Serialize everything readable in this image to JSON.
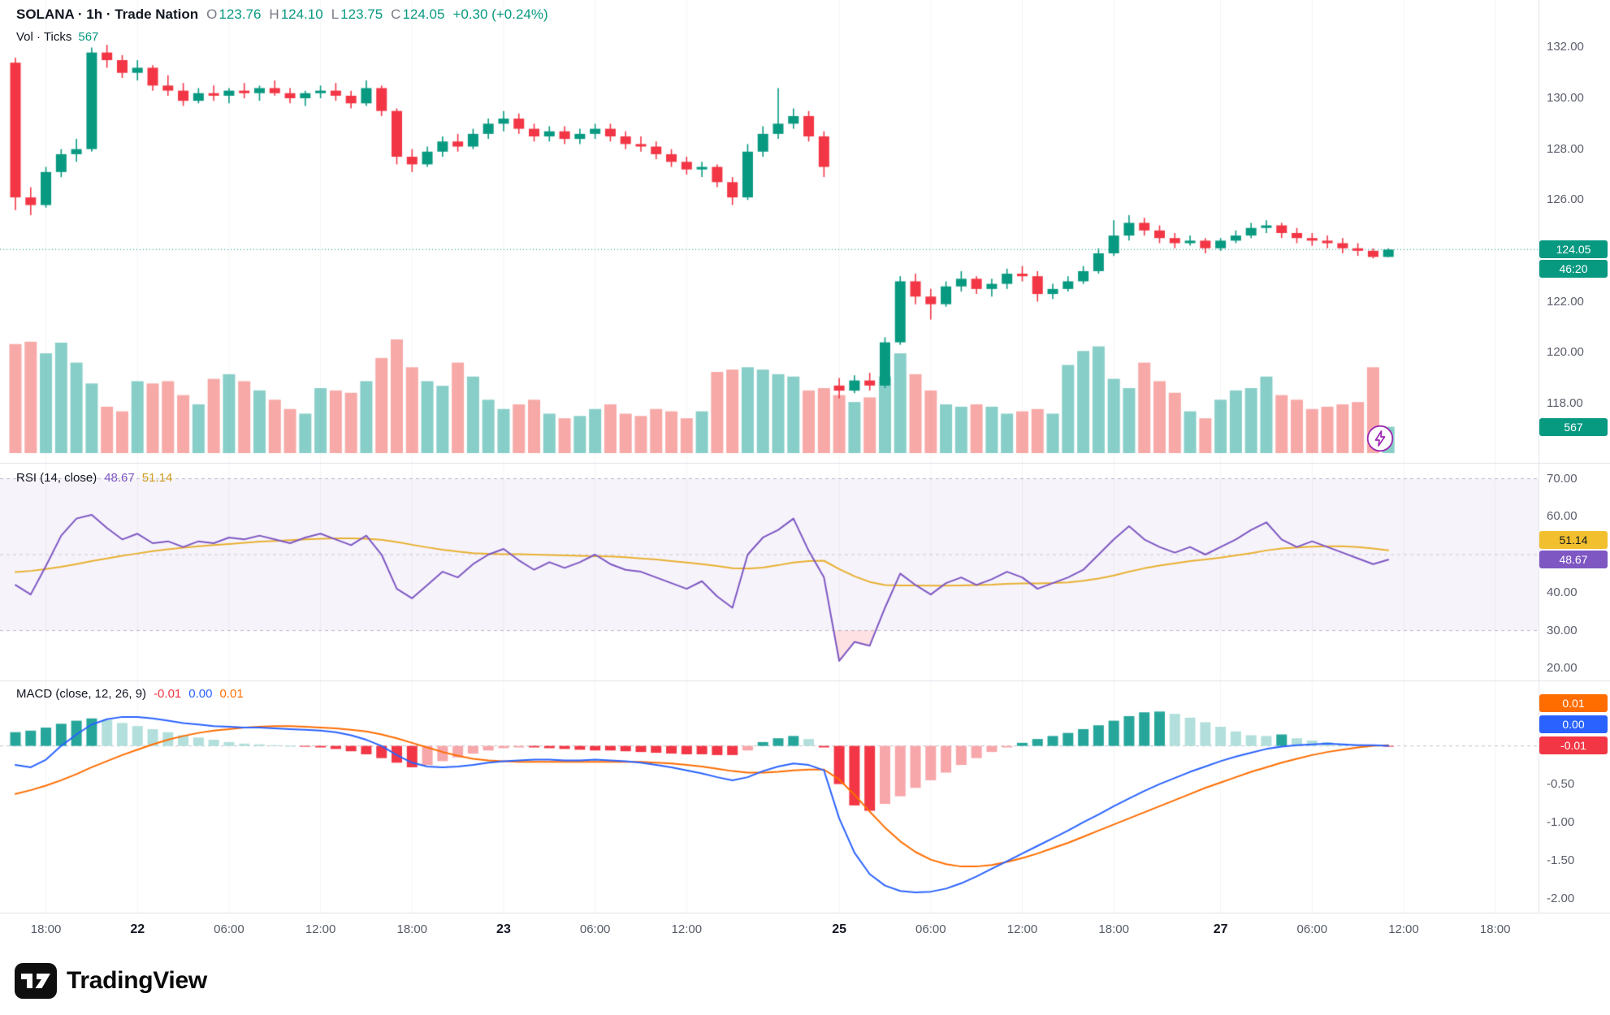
{
  "header": {
    "title": "SOLANA · 1h · Trade Nation",
    "ohlc": {
      "o_label": "O",
      "o_value": "123.76",
      "h_label": "H",
      "h_value": "124.10",
      "l_label": "L",
      "l_value": "123.75",
      "c_label": "C",
      "c_value": "124.05"
    },
    "change": "+0.30 (+0.24%)",
    "vol_label": "Vol · Ticks",
    "vol_value": "567"
  },
  "rsi": {
    "title": "RSI (14, close)",
    "value": "48.67",
    "ma_value": "51.14"
  },
  "macd": {
    "title": "MACD (close, 12, 26, 9)",
    "hist": "-0.01",
    "line": "0.00",
    "signal": "0.01"
  },
  "badges": {
    "price": "124.05",
    "countdown": "46:20",
    "volume": "567",
    "rsi_ma": "51.14",
    "rsi": "48.67",
    "macd_signal": "0.01",
    "macd_line": "0.00",
    "macd_hist": "-0.01"
  },
  "footer": {
    "brand": "TradingView"
  },
  "colors": {
    "up": "#089981",
    "down": "#f23645",
    "vol_up": "rgba(38,166,154,0.55)",
    "vol_down": "rgba(239,83,80,0.5)",
    "rsi": "#7e57c2",
    "rsi_ma": "#e8b030",
    "band": "rgba(126,87,194,0.07)",
    "rsi_oversold_fill": "rgba(242,54,69,0.15)",
    "macd": "#2962ff",
    "signal": "#ff6d00",
    "hist_up": "#26a69a",
    "hist_up_fade": "#b2dfdb",
    "hist_down": "#f23645",
    "hist_down_fade": "#f7a6aa",
    "grid": "rgba(42,46,57,0.05)",
    "separator": "#e0e3eb",
    "level_dash": "rgba(120,123,134,0.5)"
  },
  "chart_data": {
    "type": "candlestick",
    "symbol": "SOLANA",
    "interval": "1h",
    "last_price": 124.05,
    "price_axis_range": [
      117.5,
      132.6
    ],
    "candles": [
      [
        131.4,
        131.6,
        125.6,
        126.1
      ],
      [
        126.1,
        126.5,
        125.4,
        125.8
      ],
      [
        125.8,
        127.3,
        125.7,
        127.1
      ],
      [
        127.1,
        128.0,
        126.9,
        127.8
      ],
      [
        127.8,
        128.4,
        127.5,
        128.0
      ],
      [
        128.0,
        132.0,
        127.9,
        131.8
      ],
      [
        131.8,
        132.1,
        131.2,
        131.5
      ],
      [
        131.5,
        131.7,
        130.8,
        131.0
      ],
      [
        131.0,
        131.5,
        130.7,
        131.2
      ],
      [
        131.2,
        131.3,
        130.3,
        130.5
      ],
      [
        130.5,
        130.9,
        130.1,
        130.3
      ],
      [
        130.3,
        130.6,
        129.7,
        129.9
      ],
      [
        129.9,
        130.4,
        129.8,
        130.2
      ],
      [
        130.2,
        130.5,
        129.9,
        130.1
      ],
      [
        130.1,
        130.4,
        129.8,
        130.3
      ],
      [
        130.3,
        130.6,
        130.0,
        130.2
      ],
      [
        130.2,
        130.5,
        129.9,
        130.4
      ],
      [
        130.4,
        130.7,
        130.1,
        130.2
      ],
      [
        130.2,
        130.4,
        129.8,
        130.0
      ],
      [
        130.0,
        130.3,
        129.7,
        130.2
      ],
      [
        130.2,
        130.5,
        130.0,
        130.3
      ],
      [
        130.3,
        130.6,
        129.9,
        130.1
      ],
      [
        130.1,
        130.3,
        129.6,
        129.8
      ],
      [
        129.8,
        130.7,
        129.7,
        130.4
      ],
      [
        130.4,
        130.5,
        129.3,
        129.5
      ],
      [
        129.5,
        129.6,
        127.4,
        127.7
      ],
      [
        127.7,
        128.0,
        127.1,
        127.4
      ],
      [
        127.4,
        128.1,
        127.3,
        127.9
      ],
      [
        127.9,
        128.5,
        127.7,
        128.3
      ],
      [
        128.3,
        128.6,
        127.9,
        128.1
      ],
      [
        128.1,
        128.8,
        128.0,
        128.6
      ],
      [
        128.6,
        129.2,
        128.4,
        129.0
      ],
      [
        129.0,
        129.5,
        128.7,
        129.2
      ],
      [
        129.2,
        129.4,
        128.6,
        128.8
      ],
      [
        128.8,
        129.0,
        128.3,
        128.5
      ],
      [
        128.5,
        128.9,
        128.3,
        128.7
      ],
      [
        128.7,
        128.9,
        128.2,
        128.4
      ],
      [
        128.4,
        128.8,
        128.2,
        128.6
      ],
      [
        128.6,
        129.0,
        128.4,
        128.8
      ],
      [
        128.8,
        129.0,
        128.3,
        128.5
      ],
      [
        128.5,
        128.7,
        128.0,
        128.2
      ],
      [
        128.2,
        128.5,
        127.9,
        128.1
      ],
      [
        128.1,
        128.3,
        127.6,
        127.8
      ],
      [
        127.8,
        128.0,
        127.3,
        127.5
      ],
      [
        127.5,
        127.7,
        127.0,
        127.2
      ],
      [
        127.2,
        127.5,
        126.9,
        127.3
      ],
      [
        127.3,
        127.4,
        126.5,
        126.7
      ],
      [
        126.7,
        126.9,
        125.8,
        126.1
      ],
      [
        126.1,
        128.2,
        126.0,
        127.9
      ],
      [
        127.9,
        128.9,
        127.7,
        128.6
      ],
      [
        128.6,
        130.4,
        128.4,
        129.0
      ],
      [
        129.0,
        129.6,
        128.8,
        129.3
      ],
      [
        129.3,
        129.5,
        128.3,
        128.5
      ],
      [
        128.5,
        128.7,
        126.9,
        127.3
      ],
      [
        118.7,
        119.0,
        118.2,
        118.5
      ],
      [
        118.5,
        119.1,
        118.4,
        118.9
      ],
      [
        118.9,
        119.2,
        118.5,
        118.7
      ],
      [
        118.7,
        120.6,
        118.6,
        120.4
      ],
      [
        120.4,
        123.0,
        120.3,
        122.8
      ],
      [
        122.8,
        123.1,
        121.9,
        122.2
      ],
      [
        122.2,
        122.5,
        121.3,
        121.9
      ],
      [
        121.9,
        122.8,
        121.8,
        122.6
      ],
      [
        122.6,
        123.2,
        122.4,
        122.9
      ],
      [
        122.9,
        123.0,
        122.3,
        122.5
      ],
      [
        122.5,
        122.9,
        122.2,
        122.7
      ],
      [
        122.7,
        123.3,
        122.5,
        123.1
      ],
      [
        123.1,
        123.4,
        122.8,
        123.0
      ],
      [
        123.0,
        123.2,
        122.0,
        122.3
      ],
      [
        122.3,
        122.7,
        122.1,
        122.5
      ],
      [
        122.5,
        123.0,
        122.4,
        122.8
      ],
      [
        122.8,
        123.4,
        122.7,
        123.2
      ],
      [
        123.2,
        124.1,
        123.1,
        123.9
      ],
      [
        123.9,
        125.2,
        123.8,
        124.6
      ],
      [
        124.6,
        125.4,
        124.4,
        125.1
      ],
      [
        125.1,
        125.3,
        124.6,
        124.8
      ],
      [
        124.8,
        125.0,
        124.3,
        124.5
      ],
      [
        124.5,
        124.7,
        124.1,
        124.3
      ],
      [
        124.3,
        124.6,
        124.2,
        124.4
      ],
      [
        124.4,
        124.5,
        123.9,
        124.1
      ],
      [
        124.1,
        124.5,
        124.0,
        124.4
      ],
      [
        124.4,
        124.8,
        124.3,
        124.6
      ],
      [
        124.6,
        125.1,
        124.5,
        124.9
      ],
      [
        124.9,
        125.2,
        124.7,
        125.0
      ],
      [
        125.0,
        125.1,
        124.5,
        124.7
      ],
      [
        124.7,
        124.9,
        124.3,
        124.5
      ],
      [
        124.5,
        124.7,
        124.2,
        124.4
      ],
      [
        124.4,
        124.6,
        124.1,
        124.3
      ],
      [
        124.3,
        124.5,
        123.9,
        124.1
      ],
      [
        124.1,
        124.3,
        123.8,
        124.0
      ],
      [
        124.0,
        124.1,
        123.7,
        123.76
      ],
      [
        123.76,
        124.1,
        123.75,
        124.05
      ]
    ],
    "volume": [
      2350,
      2400,
      2150,
      2380,
      1950,
      1500,
      1000,
      900,
      1550,
      1500,
      1550,
      1250,
      1050,
      1600,
      1700,
      1550,
      1350,
      1150,
      950,
      850,
      1400,
      1350,
      1300,
      1550,
      2050,
      2450,
      1850,
      1550,
      1450,
      1950,
      1650,
      1150,
      950,
      1050,
      1150,
      850,
      750,
      800,
      950,
      1050,
      850,
      800,
      950,
      900,
      750,
      900,
      1750,
      1800,
      1850,
      1800,
      1700,
      1650,
      1350,
      1400,
      1250,
      1100,
      1200,
      1650,
      2150,
      1700,
      1350,
      1050,
      1000,
      1050,
      1000,
      850,
      900,
      950,
      850,
      1900,
      2200,
      2300,
      1600,
      1400,
      1950,
      1550,
      1300,
      900,
      750,
      1150,
      1350,
      1400,
      1650,
      1250,
      1150,
      950,
      1000,
      1050,
      1100,
      1850,
      567
    ],
    "rsi": [
      42,
      39.5,
      47,
      55,
      59.5,
      60.5,
      57,
      54,
      55.5,
      53,
      53.5,
      52,
      53.5,
      53,
      54.5,
      54,
      55,
      54,
      53,
      54.5,
      55.5,
      54,
      52.5,
      55,
      50,
      41,
      38.5,
      42,
      45.5,
      44,
      47.5,
      50,
      51.5,
      48.5,
      46,
      48,
      46.5,
      48,
      50,
      47.5,
      46,
      45.5,
      44,
      42.5,
      41,
      43,
      39,
      36,
      50,
      54.5,
      56.5,
      59.5,
      51,
      44,
      22,
      27,
      26,
      36,
      45,
      42,
      39.5,
      42.5,
      44,
      42,
      43.5,
      45.5,
      44,
      41,
      42.5,
      44,
      46,
      50,
      54,
      57.5,
      54,
      52,
      50.5,
      52,
      50,
      52,
      54,
      56.5,
      58.5,
      54,
      52,
      53.5,
      52,
      50.5,
      49,
      47.5,
      48.67
    ],
    "rsi_ma": [
      45.4,
      45.7,
      46.2,
      46.8,
      47.5,
      48.3,
      49.0,
      49.7,
      50.3,
      50.9,
      51.4,
      51.8,
      52.2,
      52.5,
      52.8,
      53.1,
      53.4,
      53.6,
      53.8,
      54.0,
      54.2,
      54.3,
      54.3,
      54.2,
      53.9,
      53.3,
      52.6,
      51.9,
      51.3,
      50.8,
      50.4,
      50.2,
      50.1,
      50.1,
      50.0,
      49.9,
      49.8,
      49.7,
      49.6,
      49.5,
      49.3,
      49.0,
      48.7,
      48.3,
      47.9,
      47.5,
      47.0,
      46.4,
      46.3,
      46.6,
      47.2,
      47.9,
      48.3,
      48.4,
      46.2,
      44.3,
      42.8,
      42.0,
      41.9,
      41.9,
      41.8,
      41.8,
      41.9,
      42.0,
      42.1,
      42.3,
      42.4,
      42.4,
      42.5,
      42.7,
      43.1,
      43.7,
      44.5,
      45.5,
      46.4,
      47.1,
      47.7,
      48.3,
      48.7,
      49.2,
      49.8,
      50.4,
      51.1,
      51.6,
      51.9,
      52.1,
      52.2,
      52.2,
      52.0,
      51.6,
      51.14
    ],
    "macd": [
      -0.25,
      -0.28,
      -0.18,
      0.0,
      0.15,
      0.28,
      0.35,
      0.38,
      0.38,
      0.36,
      0.33,
      0.3,
      0.28,
      0.26,
      0.25,
      0.24,
      0.24,
      0.23,
      0.22,
      0.21,
      0.2,
      0.18,
      0.14,
      0.08,
      0.0,
      -0.12,
      -0.22,
      -0.27,
      -0.28,
      -0.27,
      -0.25,
      -0.22,
      -0.2,
      -0.19,
      -0.18,
      -0.18,
      -0.19,
      -0.19,
      -0.18,
      -0.19,
      -0.2,
      -0.22,
      -0.25,
      -0.28,
      -0.32,
      -0.36,
      -0.41,
      -0.45,
      -0.41,
      -0.33,
      -0.27,
      -0.23,
      -0.25,
      -0.32,
      -0.95,
      -1.4,
      -1.68,
      -1.83,
      -1.9,
      -1.92,
      -1.91,
      -1.87,
      -1.8,
      -1.71,
      -1.61,
      -1.51,
      -1.41,
      -1.31,
      -1.21,
      -1.11,
      -1.0,
      -0.9,
      -0.79,
      -0.69,
      -0.59,
      -0.5,
      -0.42,
      -0.34,
      -0.27,
      -0.2,
      -0.14,
      -0.09,
      -0.04,
      -0.01,
      0.01,
      0.02,
      0.03,
      0.02,
      0.01,
      0.01,
      0.0
    ],
    "macd_signal": [
      -0.63,
      -0.58,
      -0.52,
      -0.45,
      -0.37,
      -0.28,
      -0.2,
      -0.12,
      -0.05,
      0.02,
      0.08,
      0.13,
      0.17,
      0.2,
      0.22,
      0.24,
      0.25,
      0.26,
      0.26,
      0.25,
      0.24,
      0.23,
      0.21,
      0.19,
      0.15,
      0.1,
      0.04,
      -0.02,
      -0.08,
      -0.13,
      -0.17,
      -0.19,
      -0.2,
      -0.21,
      -0.21,
      -0.21,
      -0.21,
      -0.21,
      -0.21,
      -0.21,
      -0.21,
      -0.21,
      -0.22,
      -0.23,
      -0.25,
      -0.27,
      -0.3,
      -0.33,
      -0.35,
      -0.35,
      -0.34,
      -0.32,
      -0.31,
      -0.31,
      -0.44,
      -0.64,
      -0.86,
      -1.07,
      -1.25,
      -1.39,
      -1.49,
      -1.55,
      -1.58,
      -1.58,
      -1.56,
      -1.52,
      -1.47,
      -1.41,
      -1.34,
      -1.27,
      -1.19,
      -1.11,
      -1.03,
      -0.95,
      -0.87,
      -0.79,
      -0.71,
      -0.63,
      -0.55,
      -0.48,
      -0.41,
      -0.34,
      -0.28,
      -0.22,
      -0.17,
      -0.12,
      -0.08,
      -0.05,
      -0.02,
      0.0,
      0.01
    ],
    "macd_hist": [
      0.18,
      0.2,
      0.24,
      0.29,
      0.33,
      0.36,
      0.34,
      0.3,
      0.26,
      0.22,
      0.18,
      0.14,
      0.11,
      0.08,
      0.05,
      0.03,
      0.02,
      0.01,
      0.0,
      -0.01,
      -0.02,
      -0.04,
      -0.07,
      -0.11,
      -0.16,
      -0.22,
      -0.28,
      -0.25,
      -0.2,
      -0.15,
      -0.1,
      -0.06,
      -0.03,
      -0.02,
      -0.02,
      -0.03,
      -0.04,
      -0.05,
      -0.06,
      -0.06,
      -0.07,
      -0.08,
      -0.09,
      -0.1,
      -0.11,
      -0.11,
      -0.12,
      -0.12,
      -0.06,
      0.05,
      0.1,
      0.13,
      0.09,
      -0.02,
      -0.5,
      -0.78,
      -0.85,
      -0.76,
      -0.66,
      -0.55,
      -0.45,
      -0.35,
      -0.25,
      -0.16,
      -0.08,
      -0.02,
      0.04,
      0.09,
      0.13,
      0.17,
      0.22,
      0.27,
      0.33,
      0.39,
      0.44,
      0.45,
      0.42,
      0.37,
      0.31,
      0.25,
      0.19,
      0.14,
      0.13,
      0.15,
      0.1,
      0.07,
      0.05,
      0.03,
      0.02,
      0.01,
      -0.01
    ],
    "axes": {
      "price_ticks": [
        {
          "label": "132.00",
          "value": 132
        },
        {
          "label": "130.00",
          "value": 130
        },
        {
          "label": "128.00",
          "value": 128
        },
        {
          "label": "126.00",
          "value": 126
        },
        {
          "label": "122.00",
          "value": 122
        },
        {
          "label": "120.00",
          "value": 120
        },
        {
          "label": "118.00",
          "value": 118
        }
      ],
      "rsi_ticks": [
        {
          "label": "70.00",
          "value": 70
        },
        {
          "label": "60.00",
          "value": 60
        },
        {
          "label": "40.00",
          "value": 40
        },
        {
          "label": "30.00",
          "value": 30
        },
        {
          "label": "20.00",
          "value": 20
        }
      ],
      "macd_ticks": [
        {
          "label": "-0.50",
          "value": -0.5
        },
        {
          "label": "-1.00",
          "value": -1
        },
        {
          "label": "-1.50",
          "value": -1.5
        },
        {
          "label": "-2.00",
          "value": -2
        }
      ],
      "time_ticks": [
        {
          "label": "18:00",
          "index": 2,
          "strong": false
        },
        {
          "label": "22",
          "index": 8,
          "strong": true
        },
        {
          "label": "06:00",
          "index": 14,
          "strong": false
        },
        {
          "label": "12:00",
          "index": 20,
          "strong": false
        },
        {
          "label": "18:00",
          "index": 26,
          "strong": false
        },
        {
          "label": "23",
          "index": 32,
          "strong": true
        },
        {
          "label": "06:00",
          "index": 38,
          "strong": false
        },
        {
          "label": "12:00",
          "index": 44,
          "strong": false
        },
        {
          "label": "25",
          "index": 54,
          "strong": true
        },
        {
          "label": "06:00",
          "index": 60,
          "strong": false
        },
        {
          "label": "12:00",
          "index": 66,
          "strong": false
        },
        {
          "label": "18:00",
          "index": 72,
          "strong": false
        },
        {
          "label": "27",
          "index": 79,
          "strong": true
        },
        {
          "label": "06:00",
          "index": 85,
          "strong": false
        },
        {
          "label": "12:00",
          "index": 91,
          "strong": false
        },
        {
          "label": "18:00",
          "index": 97,
          "strong": false
        }
      ]
    }
  }
}
